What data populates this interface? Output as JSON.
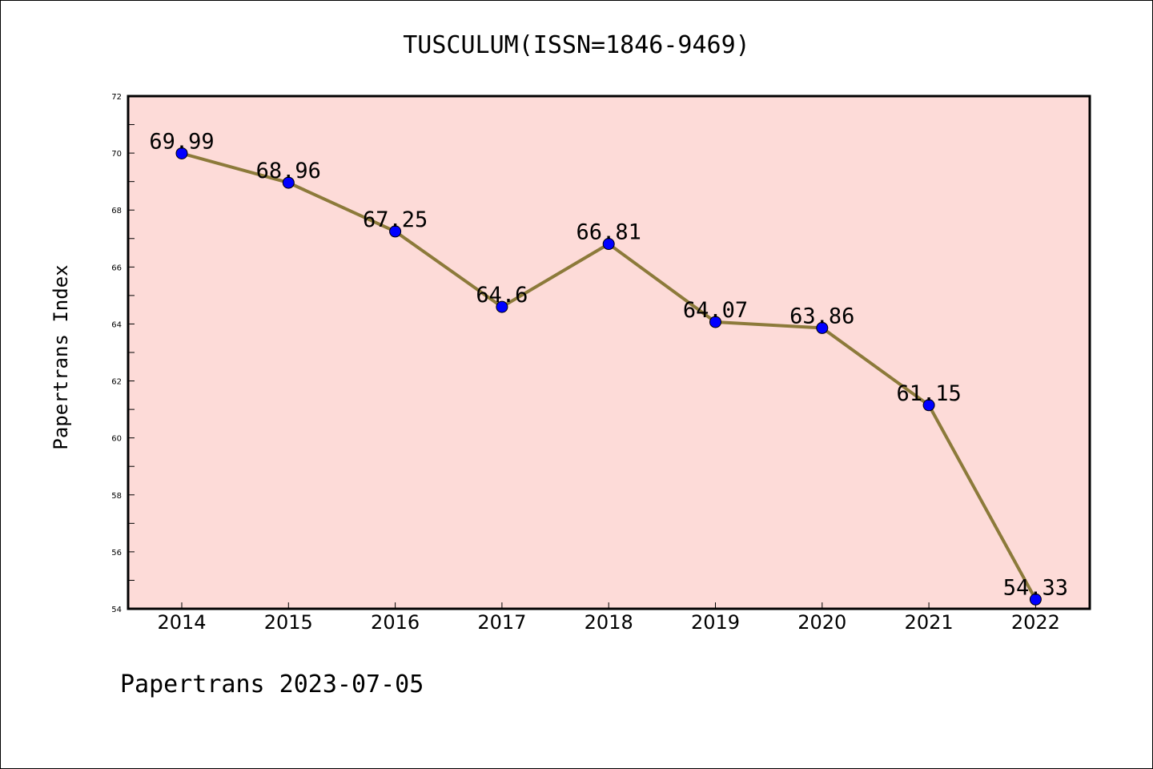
{
  "colors": {
    "background": "#ffffff",
    "plot_background": "#fddbd8",
    "line": "#8c7a3a",
    "marker": "#0000ff",
    "axis": "#000000"
  },
  "title": "TUSCULUM(ISSN=1846-9469)",
  "footer": "Papertrans 2023-07-05",
  "chart_data": {
    "type": "line",
    "title": "TUSCULUM(ISSN=1846-9469)",
    "xlabel": "",
    "ylabel": "Papertrans Index",
    "x": [
      "2014",
      "2015",
      "2016",
      "2017",
      "2018",
      "2019",
      "2020",
      "2021",
      "2022"
    ],
    "series": [
      {
        "values": [
          69.99,
          68.96,
          67.25,
          64.6,
          66.81,
          64.07,
          63.86,
          61.15,
          54.33
        ],
        "labels": [
          "69.99",
          "68.96",
          "67.25",
          "64.6",
          "66.81",
          "64.07",
          "63.86",
          "61.15",
          "54.33"
        ]
      }
    ],
    "ylim": [
      54,
      72
    ],
    "yticks": [
      "54",
      "56",
      "58",
      "60",
      "62",
      "64",
      "66",
      "68",
      "70",
      "72"
    ],
    "grid": false,
    "legend": "none"
  }
}
